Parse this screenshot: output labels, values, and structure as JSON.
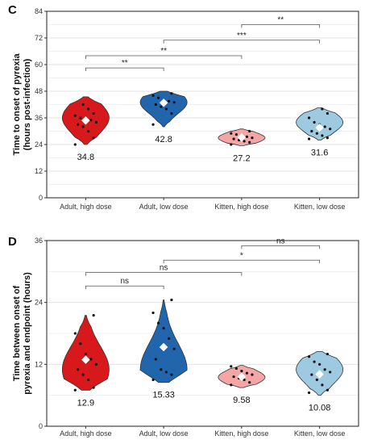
{
  "chart_data": [
    {
      "type": "violin",
      "panel_label": "C",
      "ylabel_lines": [
        "Time to onset of pyrexia",
        "(hours post-infection)"
      ],
      "ylim": [
        0,
        84
      ],
      "yticks": [
        0,
        12,
        24,
        36,
        48,
        60,
        72,
        84
      ],
      "grid": true,
      "categories": [
        "Adult, high dose",
        "Adult, low dose",
        "Kitten, high dose",
        "Kitten, low dose"
      ],
      "colors": [
        "#d7191c",
        "#2166ac",
        "#f4a6a6",
        "#9ecae1"
      ],
      "series": [
        {
          "category": "Adult, high dose",
          "mean": 34.8,
          "mean_label": "34.8",
          "min": 24,
          "max": 45.5,
          "mode": 36,
          "points": [
            24,
            27,
            30,
            32,
            33,
            34,
            35,
            35.5,
            36,
            37,
            38,
            40,
            42
          ]
        },
        {
          "category": "Adult, low dose",
          "mean": 42.8,
          "mean_label": "42.8",
          "min": 32,
          "max": 48,
          "mode": 43,
          "points": [
            33,
            38,
            40,
            41,
            42,
            43,
            43.5,
            44,
            45,
            46,
            47
          ]
        },
        {
          "category": "Kitten, high dose",
          "mean": 27.2,
          "mean_label": "27.2",
          "min": 23.5,
          "max": 31,
          "mode": 27,
          "points": [
            24,
            25,
            25.5,
            26,
            26.5,
            27,
            27.5,
            28,
            28.5,
            29,
            30
          ]
        },
        {
          "category": "Kitten, low dose",
          "mean": 31.6,
          "mean_label": "31.6",
          "min": 26,
          "max": 40.5,
          "mode": 34,
          "points": [
            26.5,
            27,
            28,
            29,
            30,
            31,
            32,
            33,
            34,
            36,
            38,
            40
          ]
        }
      ],
      "brackets": [
        {
          "from": 0,
          "to": 1,
          "level": 58.5,
          "label": "**"
        },
        {
          "from": 0,
          "to": 2,
          "level": 64,
          "label": "**"
        },
        {
          "from": 1,
          "to": 3,
          "level": 71,
          "label": "***"
        },
        {
          "from": 2,
          "to": 3,
          "level": 78,
          "label": "**"
        }
      ]
    },
    {
      "type": "violin",
      "panel_label": "D",
      "ylabel_lines": [
        "Time between onset of",
        "pyrexia and endpoint (hours)"
      ],
      "ylim": [
        0,
        36
      ],
      "yticks": [
        0,
        12,
        24,
        36
      ],
      "grid": true,
      "categories": [
        "Adult, high dose",
        "Adult, low dose",
        "Kitten, high dose",
        "Kitten, low dose"
      ],
      "colors": [
        "#d7191c",
        "#2166ac",
        "#f4a6a6",
        "#9ecae1"
      ],
      "series": [
        {
          "category": "Adult, high dose",
          "mean": 12.9,
          "mean_label": "12.9",
          "min": 7,
          "max": 21.5,
          "mode": 11,
          "points": [
            7,
            7.5,
            9,
            10,
            11,
            12,
            13,
            14,
            16,
            18,
            21.5
          ]
        },
        {
          "category": "Adult, low dose",
          "mean": 15.33,
          "mean_label": "15.33",
          "min": 8.5,
          "max": 24.5,
          "mode": 11,
          "points": [
            9,
            10,
            10.5,
            11,
            13,
            15,
            17,
            19,
            20,
            22,
            24.5
          ]
        },
        {
          "category": "Kitten, high dose",
          "mean": 9.58,
          "mean_label": "9.58",
          "min": 7.5,
          "max": 11.8,
          "mode": 9.5,
          "points": [
            8,
            8.5,
            9,
            9.3,
            9.6,
            10,
            10.3,
            10.7,
            11.2,
            11.6
          ]
        },
        {
          "category": "Kitten, low dose",
          "mean": 10.08,
          "mean_label": "10.08",
          "min": 6,
          "max": 14.5,
          "mode": 11,
          "points": [
            6.5,
            7,
            8,
            9,
            10,
            10.5,
            11,
            12,
            12.5,
            13.5,
            14
          ]
        }
      ],
      "brackets": [
        {
          "from": 0,
          "to": 1,
          "level": 27.2,
          "label": "ns"
        },
        {
          "from": 0,
          "to": 2,
          "level": 29.8,
          "label": "ns"
        },
        {
          "from": 1,
          "to": 3,
          "level": 32.2,
          "label": "*"
        },
        {
          "from": 2,
          "to": 3,
          "level": 35,
          "label": "ns"
        }
      ]
    }
  ]
}
